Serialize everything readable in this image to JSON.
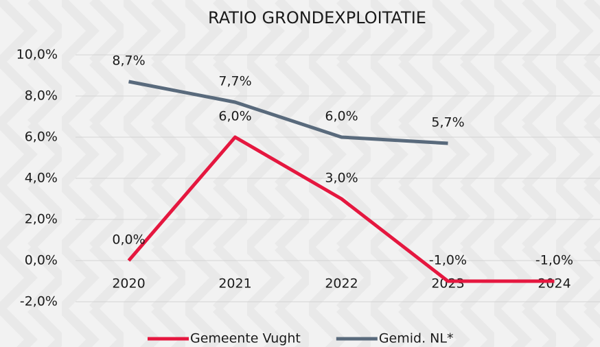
{
  "chart_data": {
    "type": "line",
    "title": "RATIO GRONDEXPLOITATIE",
    "categories": [
      "2020",
      "2021",
      "2022",
      "2023",
      "2024"
    ],
    "series": [
      {
        "name": "Gemeente Vught",
        "color": "#e5173f",
        "values": [
          0.0,
          6.0,
          3.0,
          -1.0,
          -1.0
        ],
        "value_labels": [
          "0,0%",
          "6,0%",
          "3,0%",
          "-1,0%",
          "-1,0%"
        ]
      },
      {
        "name": "Gemid. NL*",
        "color": "#596a7c",
        "values": [
          8.7,
          7.7,
          6.0,
          5.7,
          null
        ],
        "value_labels": [
          "8,7%",
          "7,7%",
          "6,0%",
          "5,7%",
          null
        ]
      }
    ],
    "ylim": [
      -2,
      10
    ],
    "yticks": [
      {
        "value": -2,
        "label": "-2,0%"
      },
      {
        "value": 0,
        "label": "0,0%"
      },
      {
        "value": 2,
        "label": "2,0%"
      },
      {
        "value": 4,
        "label": "4,0%"
      },
      {
        "value": 6,
        "label": "6,0%"
      },
      {
        "value": 8,
        "label": "8,0%"
      },
      {
        "value": 10,
        "label": "10,0%"
      }
    ],
    "grid": true,
    "legend": "bottom"
  }
}
